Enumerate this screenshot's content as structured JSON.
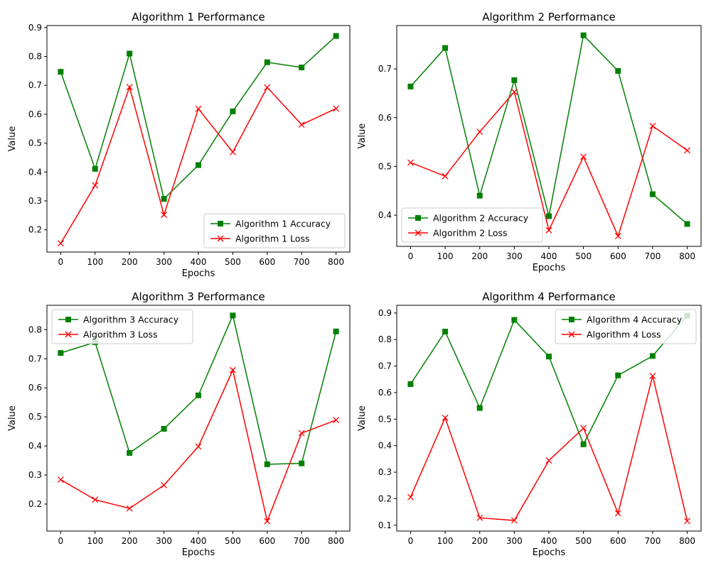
{
  "colors": {
    "accuracy": "#008000",
    "loss": "#ff0000",
    "axes": "#000000",
    "background": "#ffffff"
  },
  "chart_data": [
    {
      "type": "line",
      "title": "Algorithm 1 Performance",
      "xlabel": "Epochs",
      "ylabel": "Value",
      "x": [
        0,
        100,
        200,
        300,
        400,
        500,
        600,
        700,
        800
      ],
      "xticks": [
        "0",
        "100",
        "200",
        "300",
        "400",
        "500",
        "600",
        "700",
        "800"
      ],
      "xlim": [
        -40,
        840
      ],
      "ylim": [
        0.123,
        0.907
      ],
      "yticks": [
        "0.2",
        "0.3",
        "0.4",
        "0.5",
        "0.6",
        "0.7",
        "0.8",
        "0.9"
      ],
      "ytick_values": [
        0.2,
        0.3,
        0.4,
        0.5,
        0.6,
        0.7,
        0.8,
        0.9
      ],
      "legend_position": "lower right",
      "grid": false,
      "series": [
        {
          "name": "Algorithm 1 Accuracy",
          "marker": "square",
          "color": "#008000",
          "values": [
            0.747,
            0.411,
            0.81,
            0.307,
            0.424,
            0.61,
            0.78,
            0.762,
            0.871
          ]
        },
        {
          "name": "Algorithm 1 Loss",
          "marker": "x",
          "color": "#ff0000",
          "values": [
            0.153,
            0.354,
            0.694,
            0.252,
            0.619,
            0.469,
            0.693,
            0.564,
            0.62
          ]
        }
      ]
    },
    {
      "type": "line",
      "title": "Algorithm 2 Performance",
      "xlabel": "Epochs",
      "ylabel": "Value",
      "x": [
        0,
        100,
        200,
        300,
        400,
        500,
        600,
        700,
        800
      ],
      "xticks": [
        "0",
        "100",
        "200",
        "300",
        "400",
        "500",
        "600",
        "700",
        "800"
      ],
      "xlim": [
        -40,
        840
      ],
      "ylim": [
        0.336,
        0.789
      ],
      "yticks": [
        "0.4",
        "0.5",
        "0.6",
        "0.7"
      ],
      "ytick_values": [
        0.4,
        0.5,
        0.6,
        0.7
      ],
      "legend_position": "lower left",
      "grid": false,
      "series": [
        {
          "name": "Algorithm 2 Accuracy",
          "marker": "square",
          "color": "#008000",
          "values": [
            0.664,
            0.743,
            0.44,
            0.677,
            0.398,
            0.769,
            0.696,
            0.443,
            0.382
          ]
        },
        {
          "name": "Algorithm 2 Loss",
          "marker": "x",
          "color": "#ff0000",
          "values": [
            0.508,
            0.48,
            0.571,
            0.653,
            0.369,
            0.52,
            0.357,
            0.583,
            0.533
          ]
        }
      ]
    },
    {
      "type": "line",
      "title": "Algorithm 3 Performance",
      "xlabel": "Epochs",
      "ylabel": "Value",
      "x": [
        0,
        100,
        200,
        300,
        400,
        500,
        600,
        700,
        800
      ],
      "xticks": [
        "0",
        "100",
        "200",
        "300",
        "400",
        "500",
        "600",
        "700",
        "800"
      ],
      "xlim": [
        -40,
        840
      ],
      "ylim": [
        0.107,
        0.884
      ],
      "yticks": [
        "0.2",
        "0.3",
        "0.4",
        "0.5",
        "0.6",
        "0.7",
        "0.8"
      ],
      "ytick_values": [
        0.2,
        0.3,
        0.4,
        0.5,
        0.6,
        0.7,
        0.8
      ],
      "legend_position": "upper left",
      "grid": false,
      "series": [
        {
          "name": "Algorithm 3 Accuracy",
          "marker": "square",
          "color": "#008000",
          "values": [
            0.72,
            0.757,
            0.376,
            0.459,
            0.574,
            0.849,
            0.337,
            0.34,
            0.794
          ]
        },
        {
          "name": "Algorithm 3 Loss",
          "marker": "x",
          "color": "#ff0000",
          "values": [
            0.284,
            0.215,
            0.185,
            0.265,
            0.398,
            0.661,
            0.141,
            0.444,
            0.489
          ]
        }
      ]
    },
    {
      "type": "line",
      "title": "Algorithm 4 Performance",
      "xlabel": "Epochs",
      "ylabel": "Value",
      "x": [
        0,
        100,
        200,
        300,
        400,
        500,
        600,
        700,
        800
      ],
      "xticks": [
        "0",
        "100",
        "200",
        "300",
        "400",
        "500",
        "600",
        "700",
        "800"
      ],
      "xlim": [
        -40,
        840
      ],
      "ylim": [
        0.078,
        0.929
      ],
      "yticks": [
        "0.1",
        "0.2",
        "0.3",
        "0.4",
        "0.5",
        "0.6",
        "0.7",
        "0.8",
        "0.9"
      ],
      "ytick_values": [
        0.1,
        0.2,
        0.3,
        0.4,
        0.5,
        0.6,
        0.7,
        0.8,
        0.9
      ],
      "legend_position": "upper right",
      "grid": false,
      "series": [
        {
          "name": "Algorithm 4 Accuracy",
          "marker": "square",
          "color": "#008000",
          "values": [
            0.632,
            0.83,
            0.542,
            0.874,
            0.736,
            0.405,
            0.665,
            0.738,
            0.89
          ]
        },
        {
          "name": "Algorithm 4 Loss",
          "marker": "x",
          "color": "#ff0000",
          "values": [
            0.206,
            0.505,
            0.128,
            0.118,
            0.344,
            0.466,
            0.145,
            0.663,
            0.116
          ]
        }
      ]
    }
  ]
}
